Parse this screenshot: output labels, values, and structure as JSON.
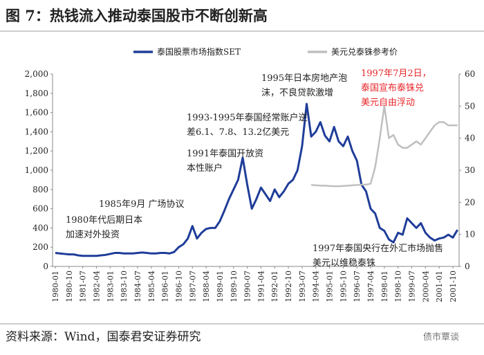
{
  "chart_data": {
    "type": "line",
    "title": "图 7：热钱流入推动泰国股市不断创新高",
    "source": "资料来源：Wind，国泰君安证券研究",
    "watermark": "债市覃谈",
    "categories": [
      "1980-01",
      null,
      null,
      "1980-10",
      null,
      null,
      "1981-07",
      null,
      null,
      "1982-04",
      null,
      null,
      "1983-01",
      null,
      null,
      "1983-10",
      null,
      null,
      "1984-07",
      null,
      null,
      "1985-04",
      null,
      null,
      "1986-01",
      null,
      null,
      "1986-10",
      null,
      null,
      "1987-07",
      null,
      null,
      "1988-04",
      null,
      null,
      "1989-01",
      null,
      null,
      "1989-10",
      null,
      null,
      "1990-07",
      null,
      null,
      "1991-04",
      null,
      null,
      "1992-01",
      null,
      null,
      "1992-10",
      null,
      null,
      "1993-07",
      null,
      null,
      "1994-04",
      null,
      null,
      "1995-01",
      null,
      null,
      "1995-10",
      null,
      null,
      "1996-07",
      null,
      null,
      "1997-04",
      null,
      null,
      "1998-01",
      null,
      null,
      "1998-10",
      null,
      null,
      "1999-07",
      null,
      null,
      "2000-04",
      null,
      null,
      "2001-01",
      null,
      null,
      "2001-10",
      null
    ],
    "series": [
      {
        "name": "泰国股票市场指数SET",
        "color": "#1f3d99",
        "axis": "y",
        "values": [
          140,
          135,
          130,
          125,
          125,
          115,
          110,
          110,
          110,
          110,
          115,
          120,
          130,
          140,
          140,
          135,
          135,
          135,
          140,
          145,
          140,
          135,
          135,
          140,
          140,
          135,
          150,
          200,
          230,
          290,
          420,
          290,
          350,
          390,
          400,
          400,
          470,
          580,
          700,
          800,
          900,
          1130,
          850,
          600,
          700,
          820,
          750,
          680,
          800,
          720,
          780,
          860,
          900,
          1000,
          1250,
          1690,
          1350,
          1400,
          1500,
          1360,
          1300,
          1450,
          1300,
          1250,
          1350,
          1200,
          1100,
          850,
          780,
          600,
          550,
          400,
          370,
          280,
          250,
          350,
          330,
          500,
          450,
          400,
          450,
          350,
          300,
          270,
          290,
          300,
          330,
          300,
          380
        ]
      },
      {
        "name": "美元兑泰铢参考价",
        "color": "#bfbfbf",
        "axis": "y2",
        "values": [
          null,
          null,
          null,
          null,
          null,
          null,
          null,
          null,
          null,
          null,
          null,
          null,
          null,
          null,
          null,
          null,
          null,
          null,
          null,
          null,
          null,
          null,
          null,
          null,
          null,
          null,
          null,
          null,
          null,
          null,
          null,
          null,
          null,
          null,
          null,
          null,
          null,
          null,
          null,
          null,
          null,
          null,
          null,
          null,
          null,
          null,
          null,
          null,
          null,
          null,
          null,
          null,
          null,
          null,
          null,
          null,
          25.4,
          25.3,
          25.2,
          25.2,
          25.1,
          25.0,
          25.0,
          25.1,
          25.2,
          25.3,
          25.4,
          25.5,
          25.5,
          25.8,
          31,
          40,
          50,
          40,
          41,
          38,
          37,
          37,
          38,
          39,
          38,
          40,
          42,
          44,
          45,
          45,
          44,
          44,
          44
        ]
      }
    ],
    "ylim": [
      0,
      2000
    ],
    "yticks": [
      0,
      200,
      400,
      600,
      800,
      {
        "value": 1000,
        "label": "1,000"
      },
      {
        "value": 1200,
        "label": "1,200"
      },
      {
        "value": 1400,
        "label": "1,400"
      },
      {
        "value": 1600,
        "label": "1,600"
      },
      {
        "value": 1800,
        "label": "1,800"
      },
      {
        "value": 2000,
        "label": "2,000"
      }
    ],
    "y2lim": [
      0,
      60
    ],
    "y2ticks": [
      0,
      10,
      20,
      30,
      40,
      50,
      60
    ],
    "annotations": [
      {
        "lines": [
          "1980年代后期日本",
          "加速对外投资"
        ],
        "color": "#222222"
      },
      {
        "lines": [
          "1985年9月 广场协议"
        ],
        "color": "#222222"
      },
      {
        "lines": [
          "1991年泰国开放资",
          "本性账户"
        ],
        "color": "#222222"
      },
      {
        "lines": [
          "1993-1995年泰国经常账户逆",
          "差6.1、7.8、13.2亿美元"
        ],
        "color": "#222222"
      },
      {
        "lines": [
          "1995年日本房地产泡",
          "沫，不良贷款激增"
        ],
        "color": "#222222"
      },
      {
        "lines": [
          "1997年7月2日，",
          "泰国宣布泰铢兑",
          "美元自由浮动"
        ],
        "color": "#e8262a"
      },
      {
        "lines": [
          "1997年泰国央行在外汇市场抛售",
          "美元以维稳泰铢"
        ],
        "color": "#222222"
      }
    ]
  }
}
